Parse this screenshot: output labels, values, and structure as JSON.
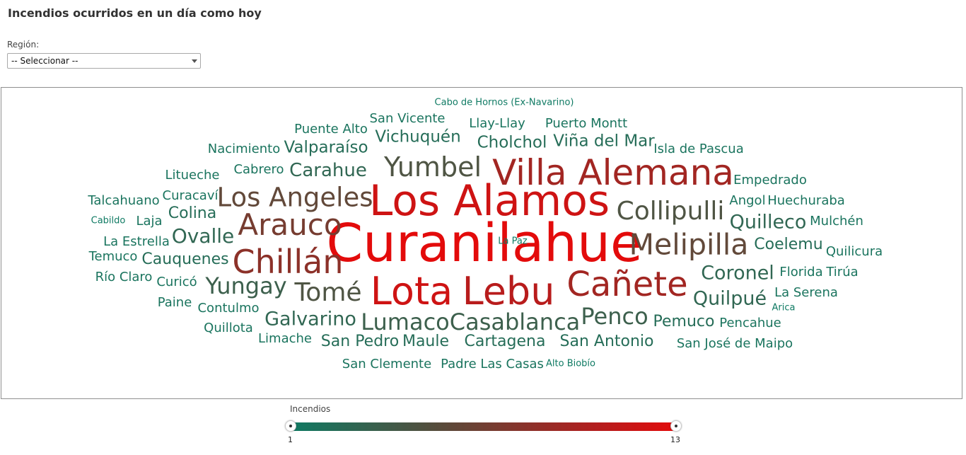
{
  "title": "Incendios ocurridos en un día como hoy",
  "region": {
    "label": "Región:",
    "selected": "-- Seleccionar --"
  },
  "legend": {
    "title": "Incendios",
    "min_label": "1",
    "max_label": "13",
    "min": 1,
    "max": 13,
    "color_low": "#0f7a63",
    "color_high": "#e30b0b"
  },
  "words": [
    {
      "t": "Curanilahue",
      "v": 13
    },
    {
      "t": "Los Alamos",
      "v": 12
    },
    {
      "t": "Lota",
      "v": 12
    },
    {
      "t": "Lebu",
      "v": 11
    },
    {
      "t": "Villa Alemana",
      "v": 10
    },
    {
      "t": "Cañete",
      "v": 10
    },
    {
      "t": "Chillán",
      "v": 9
    },
    {
      "t": "Arauco",
      "v": 8
    },
    {
      "t": "Los Angeles",
      "v": 7
    },
    {
      "t": "Melipilla",
      "v": 7
    },
    {
      "t": "Yumbel",
      "v": 6
    },
    {
      "t": "Collipulli",
      "v": 6
    },
    {
      "t": "Tomé",
      "v": 6
    },
    {
      "t": "Yungay",
      "v": 5
    },
    {
      "t": "Casablanca",
      "v": 5
    },
    {
      "t": "Lumaco",
      "v": 5
    },
    {
      "t": "Penco",
      "v": 5
    },
    {
      "t": "Carahue",
      "v": 4
    },
    {
      "t": "Ovalle",
      "v": 4
    },
    {
      "t": "Quilleco",
      "v": 4
    },
    {
      "t": "Coronel",
      "v": 4
    },
    {
      "t": "Quilpué",
      "v": 4
    },
    {
      "t": "Galvarino",
      "v": 4
    },
    {
      "t": "Cholchol",
      "v": 3
    },
    {
      "t": "Viña del Mar",
      "v": 3
    },
    {
      "t": "Vichuquén",
      "v": 3
    },
    {
      "t": "Valparaíso",
      "v": 3
    },
    {
      "t": "Colina",
      "v": 3
    },
    {
      "t": "Cauquenes",
      "v": 3
    },
    {
      "t": "Coelemu",
      "v": 3
    },
    {
      "t": "Pemuco",
      "v": 3
    },
    {
      "t": "San Pedro",
      "v": 3
    },
    {
      "t": "Maule",
      "v": 3
    },
    {
      "t": "Cartagena",
      "v": 3
    },
    {
      "t": "San Antonio",
      "v": 3
    },
    {
      "t": "San Vicente",
      "v": 2
    },
    {
      "t": "Llay-Llay",
      "v": 2
    },
    {
      "t": "Puerto Montt",
      "v": 2
    },
    {
      "t": "Puente Alto",
      "v": 2
    },
    {
      "t": "Nacimiento",
      "v": 2
    },
    {
      "t": "Isla de Pascua",
      "v": 2
    },
    {
      "t": "Empedrado",
      "v": 2
    },
    {
      "t": "Cabrero",
      "v": 2
    },
    {
      "t": "Litueche",
      "v": 2
    },
    {
      "t": "Talcahuano",
      "v": 2
    },
    {
      "t": "Curacaví",
      "v": 2
    },
    {
      "t": "Angol",
      "v": 2
    },
    {
      "t": "Huechuraba",
      "v": 2
    },
    {
      "t": "Mulchén",
      "v": 2
    },
    {
      "t": "Laja",
      "v": 2
    },
    {
      "t": "La Estrella",
      "v": 2
    },
    {
      "t": "Temuco",
      "v": 2
    },
    {
      "t": "Quilicura",
      "v": 2
    },
    {
      "t": "Río Claro",
      "v": 2
    },
    {
      "t": "Curicó",
      "v": 2
    },
    {
      "t": "Florida",
      "v": 2
    },
    {
      "t": "Tirúa",
      "v": 2
    },
    {
      "t": "La Serena",
      "v": 2
    },
    {
      "t": "Paine",
      "v": 2
    },
    {
      "t": "Contulmo",
      "v": 2
    },
    {
      "t": "Quillota",
      "v": 2
    },
    {
      "t": "Limache",
      "v": 2
    },
    {
      "t": "Pencahue",
      "v": 2
    },
    {
      "t": "San José de Maipo",
      "v": 2
    },
    {
      "t": "San Clemente",
      "v": 2
    },
    {
      "t": "Padre Las Casas",
      "v": 2
    },
    {
      "t": "Cabo de Hornos (Ex-Navarino)",
      "v": 1
    },
    {
      "t": "Cabildo",
      "v": 1
    },
    {
      "t": "Arica",
      "v": 1
    },
    {
      "t": "Alto Biobío",
      "v": 1
    },
    {
      "t": "La Paz",
      "v": 1
    }
  ]
}
